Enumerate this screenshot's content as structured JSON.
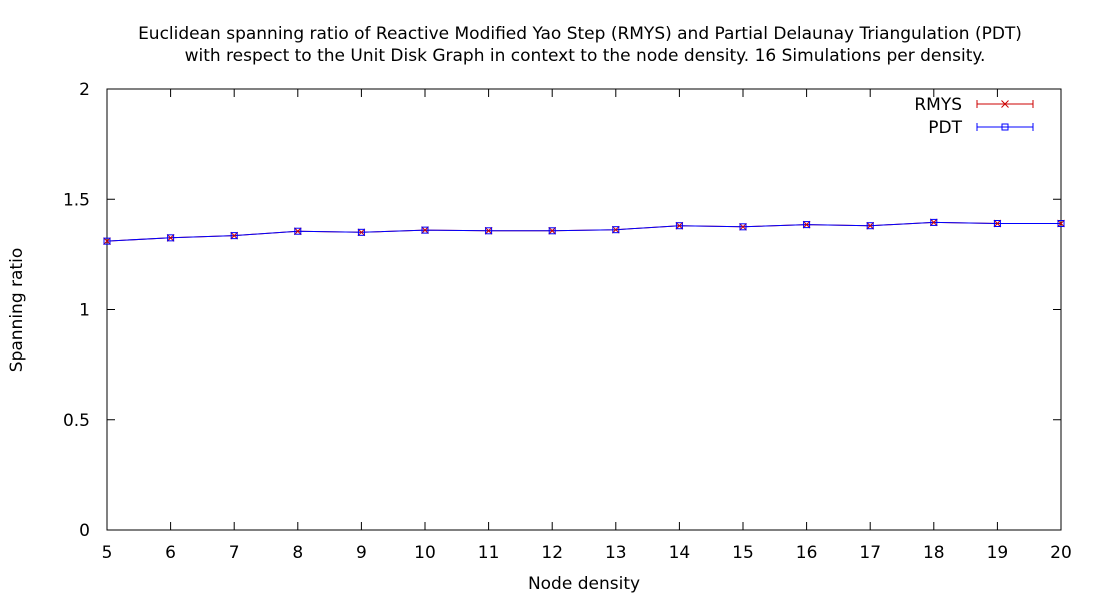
{
  "chart_data": {
    "type": "line",
    "title_lines": [
      "Euclidean spanning ratio of Reactive Modified Yao Step (RMYS) and Partial Delaunay Triangulation (PDT)",
      "with respect to the Unit Disk Graph in context to the node density. 16 Simulations per density."
    ],
    "xlabel": "Node density",
    "ylabel": "Spanning ratio",
    "xlim": [
      5,
      20
    ],
    "ylim": [
      0,
      2
    ],
    "x_ticks": [
      "5",
      "6",
      "7",
      "8",
      "9",
      "10",
      "11",
      "12",
      "13",
      "14",
      "15",
      "16",
      "17",
      "18",
      "19",
      "20"
    ],
    "y_ticks": [
      "0",
      "0.5",
      "1",
      "1.5",
      "2"
    ],
    "grid": false,
    "legend_position": "top-right",
    "x": [
      5,
      6,
      7,
      8,
      9,
      10,
      11,
      12,
      13,
      14,
      15,
      16,
      17,
      18,
      19,
      20
    ],
    "series": [
      {
        "name": "RMYS",
        "color": "#cc0000",
        "marker": "cross",
        "values": [
          1.31,
          1.325,
          1.335,
          1.355,
          1.35,
          1.36,
          1.357,
          1.357,
          1.362,
          1.38,
          1.375,
          1.385,
          1.38,
          1.395,
          1.39,
          1.39
        ]
      },
      {
        "name": "PDT",
        "color": "#0000ff",
        "marker": "square",
        "values": [
          1.31,
          1.325,
          1.335,
          1.355,
          1.35,
          1.36,
          1.357,
          1.357,
          1.362,
          1.38,
          1.375,
          1.385,
          1.38,
          1.395,
          1.39,
          1.39
        ]
      }
    ]
  }
}
